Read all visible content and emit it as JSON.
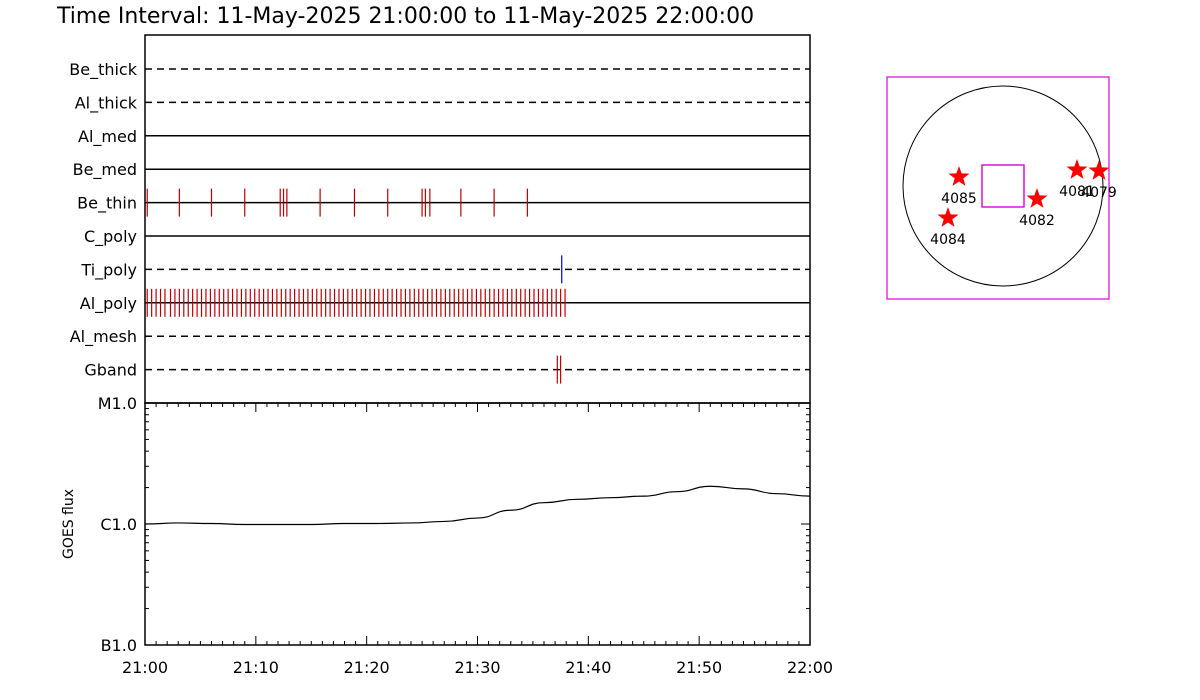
{
  "title": "Time Interval: 11-May-2025 21:00:00 to 11-May-2025 22:00:00",
  "colors": {
    "event_red": "#c00000",
    "event_blue": "#0000cc",
    "fov_magenta": "#dd00dd",
    "star_red": "#ff0000",
    "axis": "#000000"
  },
  "chart_data": [
    {
      "type": "timeline",
      "name": "filter-events",
      "x_range_min": [
        0,
        60
      ],
      "channels": [
        {
          "label": "Be_thick",
          "style": "dashed",
          "events": []
        },
        {
          "label": "Al_thick",
          "style": "dashed",
          "events": []
        },
        {
          "label": "Al_med",
          "style": "solid",
          "events": []
        },
        {
          "label": "Be_med",
          "style": "solid",
          "events": []
        },
        {
          "label": "Be_thin",
          "style": "solid",
          "color": "red",
          "events": [
            0.2,
            3.1,
            6.0,
            9.0,
            12.2,
            12.5,
            12.8,
            15.8,
            18.9,
            21.9,
            25.0,
            25.3,
            25.7,
            28.5,
            31.5,
            34.5
          ]
        },
        {
          "label": "C_poly",
          "style": "solid",
          "events": []
        },
        {
          "label": "Ti_poly",
          "style": "dashed",
          "color": "blue",
          "events": [
            37.6
          ]
        },
        {
          "label": "Al_poly",
          "style": "solid",
          "color": "red",
          "events": [
            0.2,
            0.6,
            1.0,
            1.4,
            1.8,
            2.3,
            2.7,
            3.1,
            3.5,
            3.9,
            4.3,
            4.7,
            5.1,
            5.5,
            5.9,
            6.3,
            6.7,
            7.1,
            7.5,
            7.9,
            8.3,
            8.7,
            9.1,
            9.5,
            9.9,
            10.3,
            10.7,
            11.1,
            11.5,
            11.9,
            12.3,
            12.7,
            13.1,
            13.5,
            13.9,
            14.3,
            14.7,
            15.1,
            15.5,
            15.9,
            16.3,
            16.7,
            17.1,
            17.5,
            17.9,
            18.3,
            18.7,
            19.1,
            19.5,
            19.9,
            20.3,
            20.7,
            21.1,
            21.5,
            21.9,
            22.3,
            22.7,
            23.1,
            23.5,
            23.9,
            24.3,
            24.7,
            25.1,
            25.5,
            25.9,
            26.3,
            26.7,
            27.1,
            27.5,
            27.9,
            28.3,
            28.7,
            29.1,
            29.5,
            29.9,
            30.3,
            30.7,
            31.1,
            31.5,
            31.9,
            32.3,
            32.7,
            33.1,
            33.5,
            33.9,
            34.3,
            34.7,
            35.1,
            35.5,
            35.9,
            36.3,
            36.7,
            37.1,
            37.5,
            37.9
          ]
        },
        {
          "label": "Al_mesh",
          "style": "dashed",
          "events": []
        },
        {
          "label": "Gband",
          "style": "dashed",
          "color": "red",
          "events": [
            37.2,
            37.5
          ]
        }
      ]
    },
    {
      "type": "line",
      "name": "goes-flux",
      "ylabel": "GOES flux",
      "y_scale": "log",
      "ylim": [
        1e-07,
        1e-05
      ],
      "y_ticks": [
        {
          "value": 1e-05,
          "label": "M1.0"
        },
        {
          "value": 1e-06,
          "label": "C1.0"
        },
        {
          "value": 1e-07,
          "label": "B1.0"
        }
      ],
      "x_ticks": [
        "21:00",
        "21:10",
        "21:20",
        "21:30",
        "21:40",
        "21:50",
        "22:00"
      ],
      "x_min": [
        0,
        3,
        6,
        9,
        12,
        15,
        18,
        21,
        24,
        27,
        30,
        33,
        36,
        39,
        42,
        45,
        48,
        51,
        54,
        57,
        60
      ],
      "y_values": [
        1e-06,
        1.02e-06,
        1.01e-06,
        9.9e-07,
        9.9e-07,
        9.9e-07,
        1.01e-06,
        1.01e-06,
        1.02e-06,
        1.05e-06,
        1.12e-06,
        1.3e-06,
        1.5e-06,
        1.6e-06,
        1.65e-06,
        1.7e-06,
        1.85e-06,
        2.05e-06,
        1.95e-06,
        1.78e-06,
        1.7e-06
      ]
    },
    {
      "type": "scatter",
      "name": "solar-disk-map",
      "regions": [
        {
          "label": "4085",
          "x": -0.44,
          "y": 0.09
        },
        {
          "label": "4084",
          "x": -0.55,
          "y": -0.32
        },
        {
          "label": "4082",
          "x": 0.34,
          "y": -0.13
        },
        {
          "label": "4081",
          "x": 0.74,
          "y": 0.16
        },
        {
          "label": "4079",
          "x": 0.96,
          "y": 0.15
        }
      ],
      "fov_box": {
        "x": 0.0,
        "y": 0.0,
        "half_width": 0.21
      }
    }
  ]
}
